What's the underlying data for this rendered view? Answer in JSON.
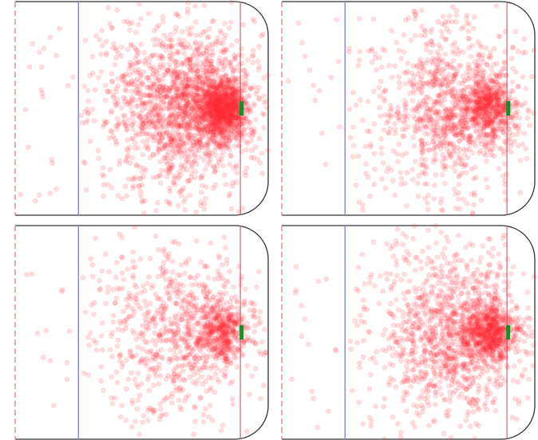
{
  "figure": {
    "title": "",
    "rows": 2,
    "cols": 2
  },
  "colors": {
    "shot": "#ff2430",
    "board": "#333333",
    "center_line": "#e8848c",
    "blue_line": "#8a8aee",
    "goal_line": "#e86a7a",
    "net": "#1f8a2c"
  },
  "chart_data": [
    {
      "type": "scatter",
      "title": "",
      "xlabel": "",
      "ylabel": "",
      "xlim": [
        0,
        100
      ],
      "ylim": [
        -42.5,
        42.5
      ],
      "grid": false,
      "rink_lines": {
        "center_line": 0,
        "blue_line": 25,
        "goal_line": 89,
        "end_boards": 100
      },
      "net_location": [
        89,
        0
      ],
      "total_shots": 2600,
      "clusters": [
        {
          "cx": 82,
          "cy": 0,
          "sx": 4.5,
          "sy": 5.5,
          "w": 0.32
        },
        {
          "cx": 70,
          "cy": 0,
          "sx": 13,
          "sy": 15,
          "w": 0.5
        },
        {
          "cx": 55,
          "cy": 0,
          "sx": 20,
          "sy": 27,
          "w": 0.18
        }
      ],
      "neutral_zone_shots": 22
    },
    {
      "type": "scatter",
      "title": "",
      "xlabel": "",
      "ylabel": "",
      "xlim": [
        0,
        100
      ],
      "ylim": [
        -42.5,
        42.5
      ],
      "grid": false,
      "rink_lines": {
        "center_line": 0,
        "blue_line": 25,
        "goal_line": 89,
        "end_boards": 100
      },
      "net_location": [
        89,
        0
      ],
      "total_shots": 1500,
      "clusters": [
        {
          "cx": 82,
          "cy": 0,
          "sx": 5,
          "sy": 5.5,
          "w": 0.3
        },
        {
          "cx": 70,
          "cy": 0,
          "sx": 13,
          "sy": 15,
          "w": 0.5
        },
        {
          "cx": 55,
          "cy": 0,
          "sx": 20,
          "sy": 25,
          "w": 0.2
        }
      ],
      "neutral_zone_shots": 14
    },
    {
      "type": "scatter",
      "title": "",
      "xlabel": "",
      "ylabel": "",
      "xlim": [
        0,
        100
      ],
      "ylim": [
        -42.5,
        42.5
      ],
      "grid": false,
      "rink_lines": {
        "center_line": 0,
        "blue_line": 25,
        "goal_line": 89,
        "end_boards": 100
      },
      "net_location": [
        89,
        0
      ],
      "total_shots": 1150,
      "clusters": [
        {
          "cx": 82,
          "cy": 0,
          "sx": 5,
          "sy": 5.5,
          "w": 0.28
        },
        {
          "cx": 70,
          "cy": 0,
          "sx": 14,
          "sy": 15,
          "w": 0.5
        },
        {
          "cx": 55,
          "cy": 0,
          "sx": 21,
          "sy": 26,
          "w": 0.22
        }
      ],
      "neutral_zone_shots": 12
    },
    {
      "type": "scatter",
      "title": "",
      "xlabel": "",
      "ylabel": "",
      "xlim": [
        0,
        100
      ],
      "ylim": [
        -42.5,
        42.5
      ],
      "grid": false,
      "rink_lines": {
        "center_line": 0,
        "blue_line": 25,
        "goal_line": 89,
        "end_boards": 100
      },
      "net_location": [
        89,
        0
      ],
      "total_shots": 1750,
      "clusters": [
        {
          "cx": 82,
          "cy": 0,
          "sx": 5,
          "sy": 5.5,
          "w": 0.3
        },
        {
          "cx": 70,
          "cy": 0,
          "sx": 13,
          "sy": 15,
          "w": 0.5
        },
        {
          "cx": 55,
          "cy": 0,
          "sx": 20,
          "sy": 26,
          "w": 0.2
        }
      ],
      "neutral_zone_shots": 16
    }
  ]
}
